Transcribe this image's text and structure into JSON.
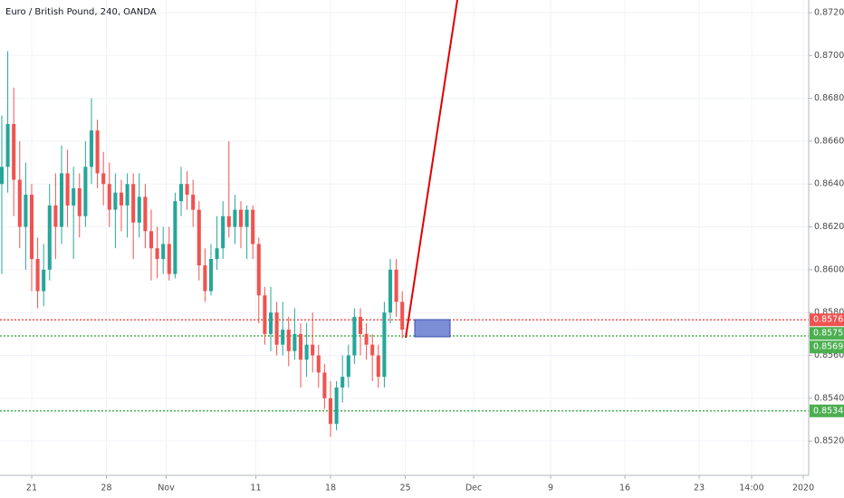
{
  "chart_data": {
    "type": "candlestick",
    "title": "Euro / British Pound, 240, OANDA",
    "up_color": "#26a69a",
    "down_color": "#ef5350",
    "x": [
      -2.0,
      -1.6,
      -1.2,
      -0.8,
      -0.4,
      0.0,
      0.4,
      0.8,
      1.2,
      1.6,
      2.0,
      2.4,
      2.8,
      3.2,
      3.6,
      4.0,
      4.4,
      4.8,
      5.2,
      5.6,
      6.0,
      6.4,
      6.8,
      7.2,
      7.6,
      8.0,
      8.4,
      8.8,
      9.2,
      9.6,
      10.0,
      10.4,
      10.8,
      11.2,
      11.6,
      12.0,
      12.4,
      12.8,
      13.2,
      13.6,
      14.0,
      14.4,
      14.8,
      15.2,
      15.6,
      16.0,
      16.4,
      16.8,
      17.2,
      17.6,
      18.0,
      18.4,
      18.8,
      19.2,
      19.6,
      20.0,
      20.4,
      20.8,
      21.2,
      21.6,
      22.0,
      22.4,
      22.8,
      23.2,
      23.6,
      24.0,
      24.4,
      24.8
    ],
    "open": [
      0.864,
      0.8648,
      0.8668,
      0.8642,
      0.862,
      0.8635,
      0.8605,
      0.859,
      0.86,
      0.863,
      0.862,
      0.8645,
      0.863,
      0.8638,
      0.8625,
      0.8648,
      0.8665,
      0.8645,
      0.864,
      0.8628,
      0.8636,
      0.863,
      0.864,
      0.8622,
      0.8634,
      0.8618,
      0.861,
      0.8605,
      0.8612,
      0.8598,
      0.8632,
      0.864,
      0.8635,
      0.8628,
      0.8602,
      0.859,
      0.8605,
      0.861,
      0.8625,
      0.862,
      0.8628,
      0.862,
      0.8628,
      0.8612,
      0.8588,
      0.857,
      0.858,
      0.8565,
      0.8572,
      0.8562,
      0.857,
      0.8558,
      0.8565,
      0.856,
      0.8552,
      0.854,
      0.8528,
      0.8545,
      0.855,
      0.856,
      0.8578,
      0.857,
      0.8565,
      0.856,
      0.855,
      0.858,
      0.86,
      0.8585
    ],
    "high": [
      0.8672,
      0.8702,
      0.8685,
      0.866,
      0.865,
      0.864,
      0.8615,
      0.8612,
      0.864,
      0.8645,
      0.8658,
      0.8656,
      0.8648,
      0.8645,
      0.866,
      0.868,
      0.867,
      0.8655,
      0.865,
      0.8645,
      0.8642,
      0.8645,
      0.8645,
      0.8645,
      0.864,
      0.8628,
      0.862,
      0.862,
      0.862,
      0.8636,
      0.8648,
      0.8646,
      0.8642,
      0.8632,
      0.861,
      0.8612,
      0.8625,
      0.8632,
      0.866,
      0.8635,
      0.8632,
      0.863,
      0.863,
      0.8615,
      0.8592,
      0.8592,
      0.8585,
      0.8585,
      0.8578,
      0.8582,
      0.8575,
      0.8575,
      0.858,
      0.8565,
      0.8556,
      0.8548,
      0.8548,
      0.856,
      0.8565,
      0.8582,
      0.8582,
      0.8575,
      0.857,
      0.8565,
      0.8585,
      0.8605,
      0.8605,
      0.859
    ],
    "low": [
      0.8598,
      0.8636,
      0.8625,
      0.861,
      0.86,
      0.859,
      0.8582,
      0.8583,
      0.8595,
      0.8605,
      0.8612,
      0.862,
      0.8605,
      0.8615,
      0.862,
      0.864,
      0.8638,
      0.863,
      0.862,
      0.861,
      0.8618,
      0.8615,
      0.8605,
      0.8615,
      0.861,
      0.8595,
      0.8596,
      0.8598,
      0.8595,
      0.8596,
      0.8625,
      0.8628,
      0.862,
      0.8595,
      0.8585,
      0.8588,
      0.86,
      0.8605,
      0.8615,
      0.8612,
      0.861,
      0.8605,
      0.8605,
      0.8575,
      0.8565,
      0.8562,
      0.856,
      0.856,
      0.8555,
      0.8558,
      0.8545,
      0.855,
      0.8552,
      0.8545,
      0.8535,
      0.8522,
      0.8525,
      0.8538,
      0.8545,
      0.8556,
      0.856,
      0.8558,
      0.8548,
      0.8545,
      0.8545,
      0.8575,
      0.8578,
      0.8568
    ],
    "close": [
      0.8648,
      0.8668,
      0.8642,
      0.862,
      0.8635,
      0.8605,
      0.859,
      0.86,
      0.863,
      0.862,
      0.8645,
      0.863,
      0.8638,
      0.8625,
      0.8648,
      0.8665,
      0.8645,
      0.864,
      0.8628,
      0.8636,
      0.863,
      0.864,
      0.8622,
      0.8634,
      0.8618,
      0.861,
      0.8605,
      0.8612,
      0.8598,
      0.8632,
      0.864,
      0.8635,
      0.8628,
      0.8602,
      0.859,
      0.8605,
      0.861,
      0.8625,
      0.862,
      0.8628,
      0.862,
      0.8628,
      0.8612,
      0.8588,
      0.857,
      0.858,
      0.8565,
      0.8572,
      0.8562,
      0.857,
      0.8558,
      0.8565,
      0.856,
      0.8552,
      0.854,
      0.8528,
      0.8545,
      0.855,
      0.856,
      0.8578,
      0.857,
      0.8565,
      0.856,
      0.855,
      0.858,
      0.86,
      0.8585,
      0.8572
    ],
    "xlim": [
      -2.12,
      52.0
    ],
    "xticks": [
      {
        "value": 0,
        "label": "21"
      },
      {
        "value": 5,
        "label": "28"
      },
      {
        "value": 9,
        "label": "Nov"
      },
      {
        "value": 15,
        "label": "11"
      },
      {
        "value": 20,
        "label": "18"
      },
      {
        "value": 25,
        "label": "25"
      },
      {
        "value": 29.58,
        "label": "Dec"
      },
      {
        "value": 34.73,
        "label": "9"
      },
      {
        "value": 39.7,
        "label": "16"
      },
      {
        "value": 44.67,
        "label": "23"
      },
      {
        "value": 48.18,
        "label": "14:00"
      },
      {
        "value": 51.64,
        "label": "2020"
      }
    ],
    "ylim": [
      0.8504,
      0.87259
    ],
    "yticks": [
      {
        "value": 0.872,
        "label": "0.87200"
      },
      {
        "value": 0.87,
        "label": "0.87000"
      },
      {
        "value": 0.868,
        "label": "0.86800"
      },
      {
        "value": 0.866,
        "label": "0.86600"
      },
      {
        "value": 0.864,
        "label": "0.86400"
      },
      {
        "value": 0.862,
        "label": "0.86200"
      },
      {
        "value": 0.86,
        "label": "0.86000"
      },
      {
        "value": 0.858,
        "label": "0.85800"
      },
      {
        "value": 0.856,
        "label": "0.85600"
      },
      {
        "value": 0.854,
        "label": "0.85400"
      },
      {
        "value": 0.852,
        "label": "0.85200"
      }
    ],
    "grid": true,
    "price_lines": [
      {
        "value": 0.85766,
        "color": "#ef5350"
      },
      {
        "value": 0.85691,
        "color": "#4caf50"
      },
      {
        "value": 0.85341,
        "color": "#4caf50"
      }
    ],
    "price_labels": [
      {
        "value": 0.85766,
        "color": "#ef5350"
      },
      {
        "value": 0.85759,
        "color": "#4caf50"
      },
      {
        "value": 0.85691,
        "color": "#4caf50"
      },
      {
        "value": 0.85341,
        "color": "#4caf50"
      }
    ]
  }
}
